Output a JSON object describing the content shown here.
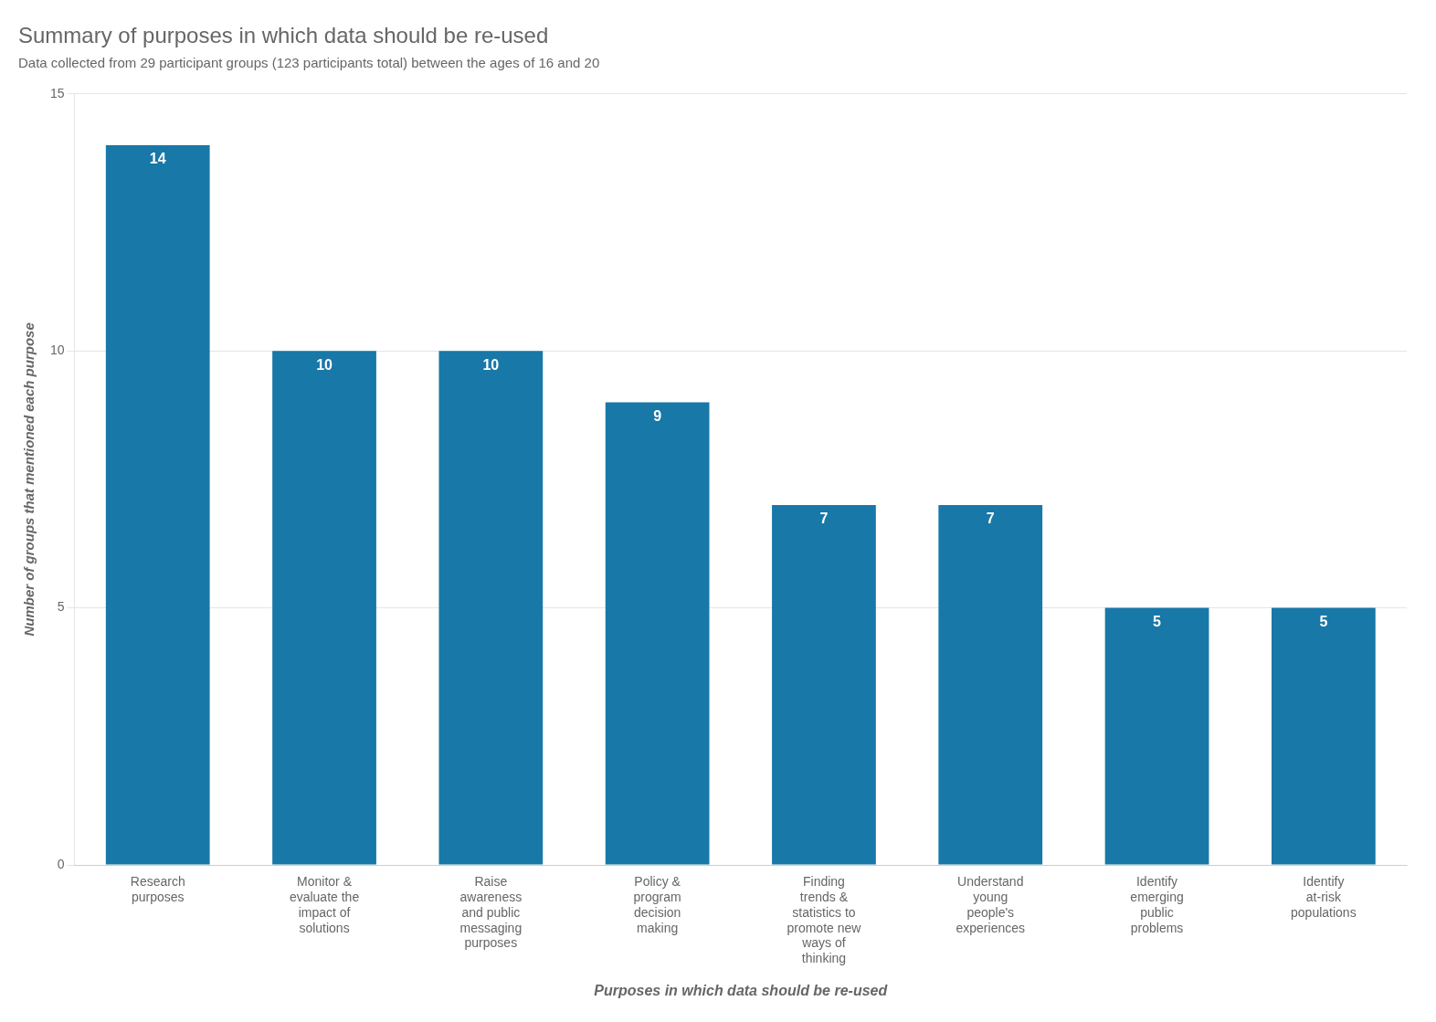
{
  "chart_data": {
    "type": "bar",
    "title": "Summary of purposes in which data should be re-used",
    "subtitle": "Data collected from 29 participant groups (123 participants total) between the ages of 16 and 20",
    "categories": [
      "Research\npurposes",
      "Monitor &\nevaluate the\nimpact of\nsolutions",
      "Raise\nawareness\nand public\nmessaging\npurposes",
      "Policy &\nprogram\ndecision\nmaking",
      "Finding\ntrends &\nstatistics to\npromote new\nways of\nthinking",
      "Understand\nyoung\npeople's\nexperiences",
      "Identify\nemerging\npublic\nproblems",
      "Identify\nat-risk\npopulations"
    ],
    "values": [
      14,
      10,
      10,
      9,
      7,
      7,
      5,
      5
    ],
    "color": "#1878a8",
    "xlabel": "Purposes in which data should be re-used",
    "ylabel": "Number of groups that mentioned each purpose",
    "ylim": [
      0,
      15
    ],
    "yticks": [
      0,
      5,
      10,
      15
    ],
    "grid": true,
    "data_labels": true
  }
}
